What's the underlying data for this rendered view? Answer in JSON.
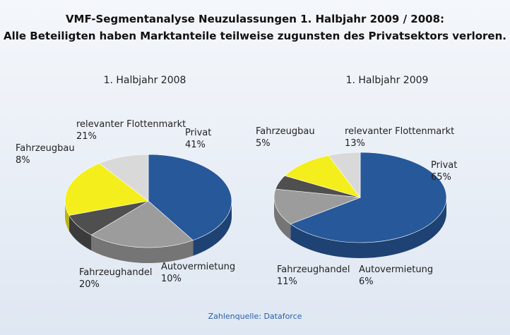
{
  "header": {
    "title": "VMF-Segmentanalyse Neuzulassungen 1. Halbjahr 2009 / 2008:",
    "subtitle": "Alle Beteiligten haben Marktanteile teilweise zugunsten des Privatsektors verloren."
  },
  "source": "Zahlenquelle: Dataforce",
  "chart_data": [
    {
      "type": "pie",
      "title": "1. Halbjahr 2008",
      "categories": [
        "Privat",
        "relevanter Flottenmarkt",
        "Fahrzeugbau",
        "Fahrzeughandel",
        "Autovermietung"
      ],
      "values": [
        41,
        21,
        8,
        20,
        10
      ],
      "value_labels": [
        "41%",
        "21%",
        "8%",
        "20%",
        "10%"
      ],
      "colors": [
        "#27589a",
        "#9c9c9c",
        "#4f4f4f",
        "#f4ee1c",
        "#d9d9d9"
      ]
    },
    {
      "type": "pie",
      "title": "1. Halbjahr 2009",
      "categories": [
        "Privat",
        "relevanter Flottenmarkt",
        "Fahrzeugbau",
        "Fahrzeughandel",
        "Autovermietung"
      ],
      "values": [
        65,
        13,
        5,
        11,
        6
      ],
      "value_labels": [
        "65%",
        "13%",
        "5%",
        "11%",
        "6%"
      ],
      "colors": [
        "#27589a",
        "#9c9c9c",
        "#4f4f4f",
        "#f4ee1c",
        "#d9d9d9"
      ]
    }
  ]
}
